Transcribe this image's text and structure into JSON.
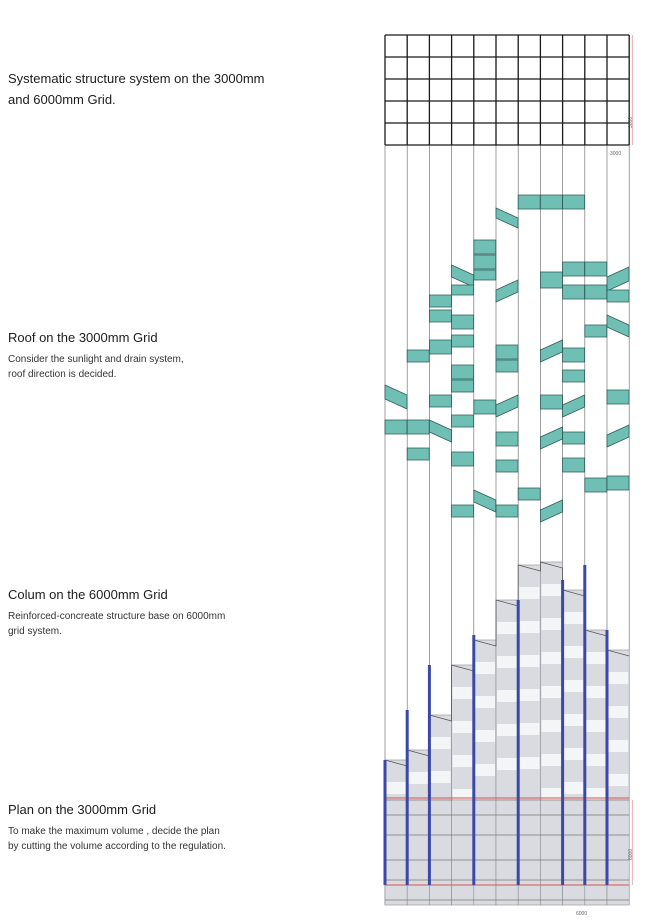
{
  "sections": [
    {
      "id": "grid",
      "title_lines": [
        "Systematic structure system on the 3000mm",
        "and 6000mm Grid."
      ],
      "desc_lines": []
    },
    {
      "id": "roof",
      "title_lines": [
        "Roof on the 3000mm Grid"
      ],
      "desc_lines": [
        "Consider the sunlight and drain system,",
        "roof direction is decided."
      ]
    },
    {
      "id": "column",
      "title_lines": [
        "Colum on the 6000mm Grid"
      ],
      "desc_lines": [
        "Reinforced-concreate structure base on 6000mm",
        "grid system."
      ]
    },
    {
      "id": "plan",
      "title_lines": [
        "Plan on the 3000mm Grid"
      ],
      "desc_lines": [
        "To make the maximum volume , decide the  plan",
        "by cutting the volume according to the regulation."
      ]
    }
  ],
  "dimensions": {
    "grid_label": "3000",
    "grid_side_label": "3000",
    "plan_side_label": "6000",
    "bottom_label": "6000"
  },
  "colors": {
    "roof_fill": "#6fbfb5",
    "roof_stroke": "#2f5d58",
    "column": "#3b49a6",
    "volume_fill": "#d9dbe0",
    "plan_line": "#d9534f",
    "grid_line": "#1a1a1a",
    "text": "#1c1c1c"
  }
}
